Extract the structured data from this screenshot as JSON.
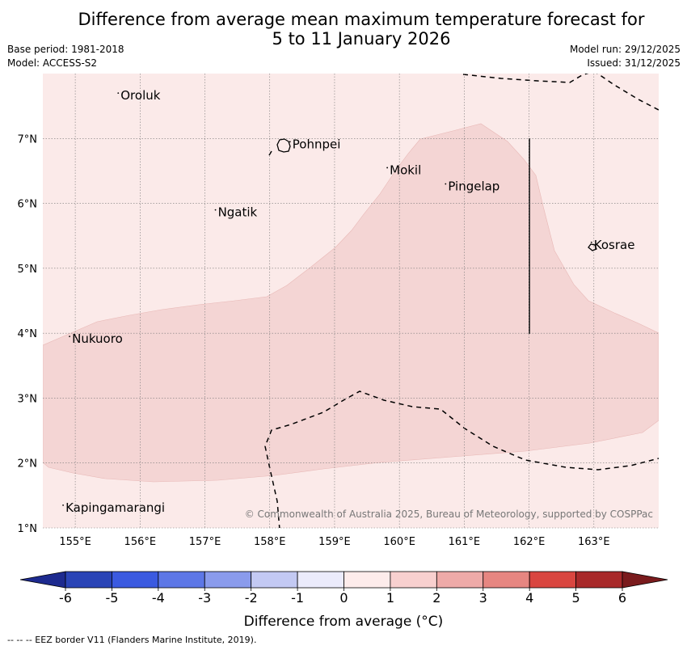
{
  "title": {
    "line1": "Difference from average mean maximum temperature forecast for",
    "line2": "5 to 11 January 2026"
  },
  "meta": {
    "base_period": "Base period: 1981-2018",
    "model": "Model: ACCESS-S2",
    "model_run": "Model run: 29/12/2025",
    "issued": "Issued: 31/12/2025"
  },
  "map": {
    "lon_range": [
      154.5,
      164.0
    ],
    "lat_range": [
      1.0,
      8.0
    ],
    "lon_ticks": [
      155,
      156,
      157,
      158,
      159,
      160,
      161,
      162,
      163
    ],
    "lat_ticks": [
      1,
      2,
      3,
      4,
      5,
      6,
      7
    ],
    "lon_labels": [
      "155°E",
      "156°E",
      "157°E",
      "158°E",
      "159°E",
      "160°E",
      "161°E",
      "162°E",
      "163°E"
    ],
    "lat_labels": [
      "1°N",
      "2°N",
      "3°N",
      "4°N",
      "5°N",
      "6°N",
      "7°N"
    ],
    "places": [
      {
        "name": "Oroluk",
        "lon": 155.7,
        "lat": 7.6
      },
      {
        "name": "Pohnpei",
        "lon": 158.35,
        "lat": 6.85
      },
      {
        "name": "Mokil",
        "lon": 159.85,
        "lat": 6.45
      },
      {
        "name": "Pingelap",
        "lon": 160.75,
        "lat": 6.2
      },
      {
        "name": "Ngatik",
        "lon": 157.2,
        "lat": 5.8
      },
      {
        "name": "Kosrae",
        "lon": 163.0,
        "lat": 5.3
      },
      {
        "name": "Nukuoro",
        "lon": 154.95,
        "lat": 3.85
      },
      {
        "name": "Kapingamarangi",
        "lon": 154.85,
        "lat": 1.25
      }
    ],
    "copyright": "© Commonwealth of Australia 2025, Bureau of Meteorology, supported by COSPPac",
    "background_color": "#fbeae9",
    "anomaly_color": "#f4d5d4"
  },
  "colorbar": {
    "title": "Difference from average (°C)",
    "ticks": [
      "-6",
      "-5",
      "-4",
      "-3",
      "-2",
      "-1",
      "0",
      "1",
      "2",
      "3",
      "4",
      "5",
      "6"
    ],
    "colors": [
      "#1d2a8f",
      "#2a44b6",
      "#3b5ae0",
      "#5d77e6",
      "#8a9bec",
      "#c3c9f3",
      "#ebebfb",
      "#fdeceb",
      "#f8d0cf",
      "#eeaaa8",
      "#e68681",
      "#d94640",
      "#a8292a",
      "#7a1b1d"
    ]
  },
  "footnote": "-- --  -- EEZ border V11 (Flanders Marine Institute, 2019)."
}
